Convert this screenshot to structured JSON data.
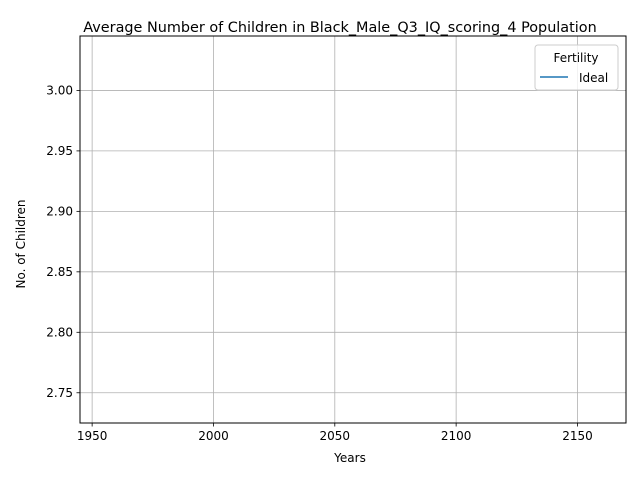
{
  "chart_data": {
    "type": "line",
    "title": "Average Number of Children in Black_Male_Q3_IQ_scoring_4 Population",
    "xlabel": "Years",
    "ylabel": "No. of Children",
    "xlim": [
      1945,
      2170
    ],
    "ylim": [
      2.725,
      3.045
    ],
    "xticks": [
      1950,
      2000,
      2050,
      2100,
      2150
    ],
    "yticks": [
      2.75,
      2.8,
      2.85,
      2.9,
      2.95,
      3.0
    ],
    "ytick_labels": [
      "2.75",
      "2.80",
      "2.85",
      "2.90",
      "2.95",
      "3.00"
    ],
    "grid": true,
    "legend": {
      "title": "Fertility",
      "placement": "top-right",
      "entries": [
        "Ideal"
      ]
    },
    "series": [
      {
        "name": "Ideal",
        "color": "#1f77b4",
        "x": [],
        "y": []
      }
    ]
  }
}
